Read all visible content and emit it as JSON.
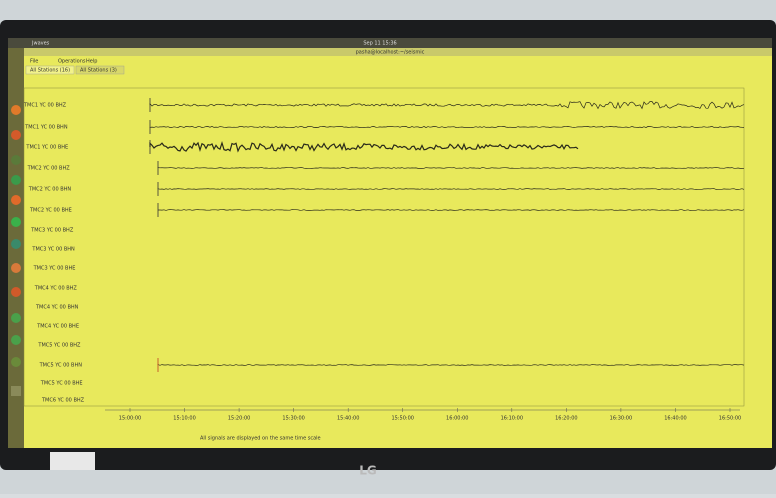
{
  "topbar": {
    "app": "Jwaves",
    "clock": "Sep 11 15:36"
  },
  "window": {
    "title": "pasha@localhost:~/seismic",
    "menu": [
      "File",
      "Operations",
      "Help"
    ],
    "tabs": [
      "All Stations (16)",
      "All Stations (3)"
    ]
  },
  "traces": [
    "TMC1 YC 00 BHZ",
    "TMC1 YC 00 BHN",
    "TMC1 YC 00 BHE",
    "TMC2 YC 00 BHZ",
    "TMC2 YC 00 BHN",
    "TMC2 YC 00 BHE",
    "TMC3 YC 00 BHZ",
    "TMC3 YC 00 BHN",
    "TMC3 YC 00 BHE",
    "TMC4 YC 00 BHZ",
    "TMC4 YC 00 BHN",
    "TMC4 YC 00 BHE",
    "TMC5 YC 00 BHZ",
    "TMC5 YC 00 BHN",
    "TMC5 YC 00 BHE",
    "TMC6 YC 00 BHZ"
  ],
  "time_axis": [
    "15:00:00",
    "15:10:00",
    "15:20:00",
    "15:30:00",
    "15:40:00",
    "15:50:00",
    "16:00:00",
    "16:10:00",
    "16:20:00",
    "16:30:00",
    "16:40:00",
    "16:50:00"
  ],
  "status": "All signals are displayed on the same time scale",
  "bezel": {
    "brand": "LG"
  }
}
